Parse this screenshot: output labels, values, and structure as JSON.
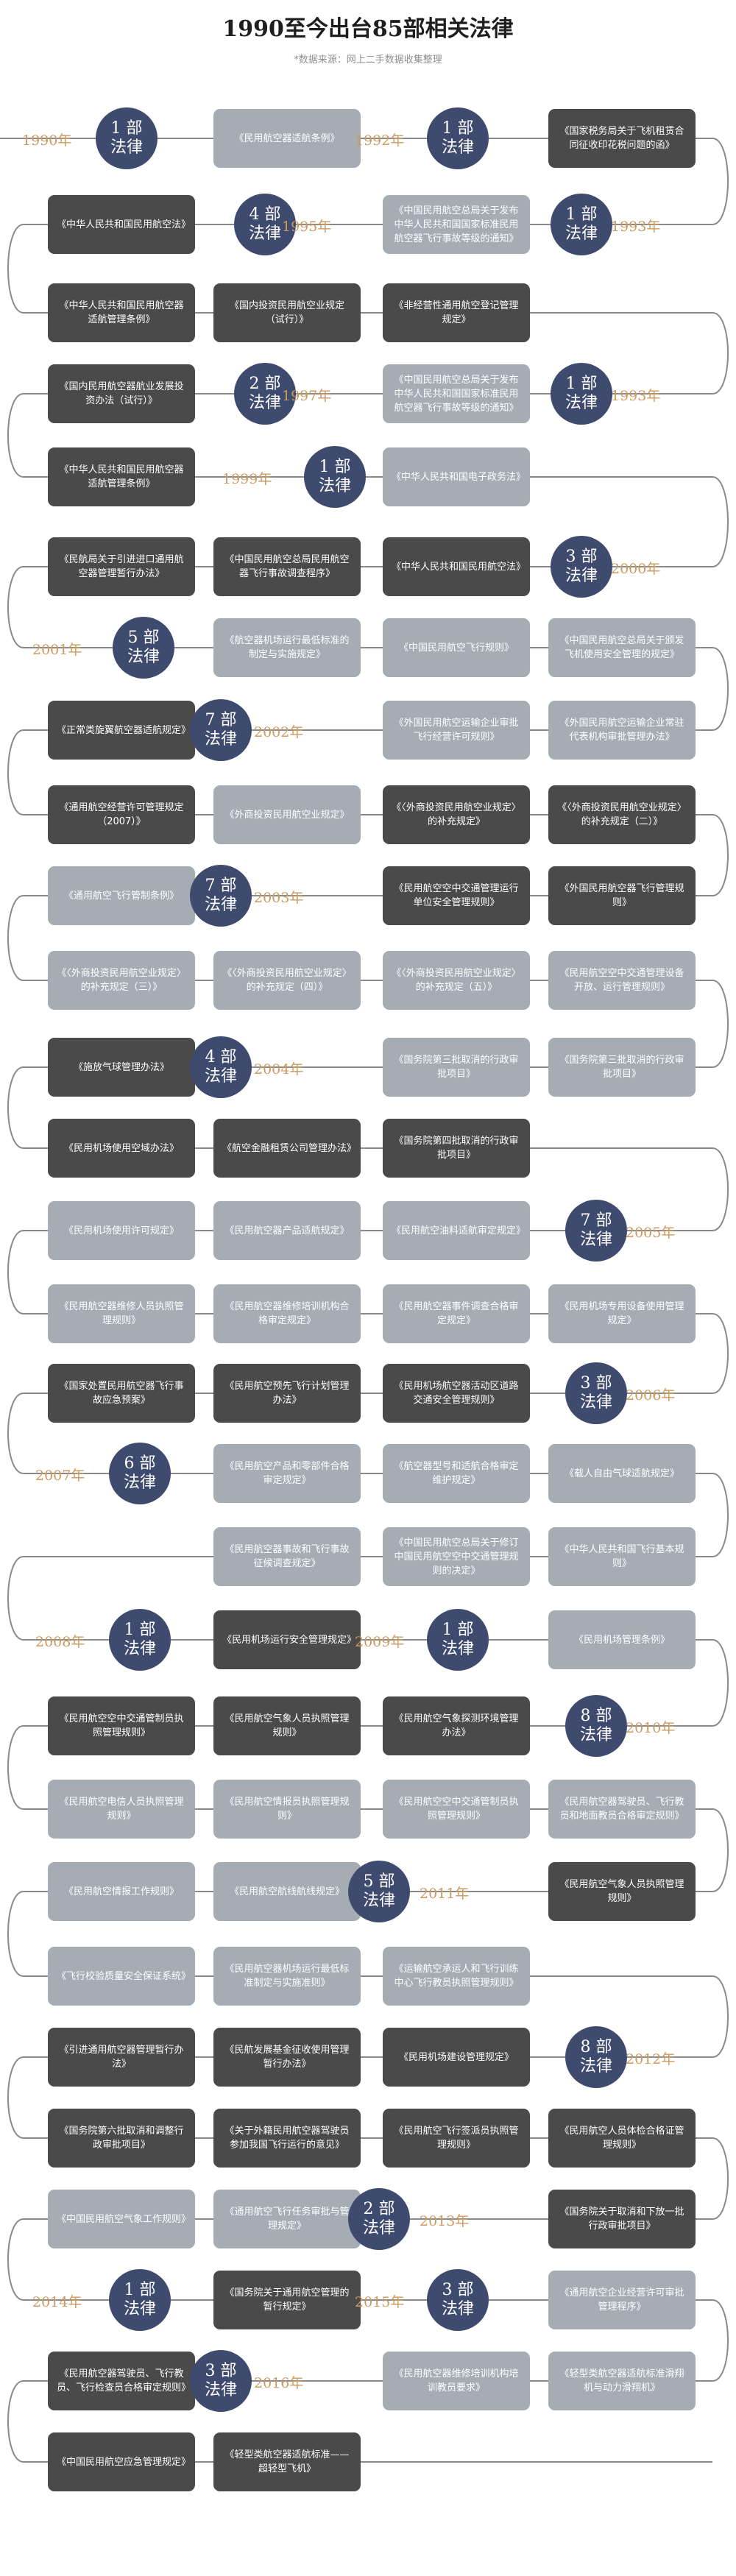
{
  "title": "1990至今出台85部相关法律",
  "subtitle": "*数据来源：网上二手数据收集整理",
  "unit": "部",
  "law": "法律",
  "colors": {
    "dark_box": "#4a4a4a",
    "light_box": "#a5acb4",
    "circle": "#3f4b6e",
    "year": "#cc9a5e",
    "line": "#8a8a8a"
  },
  "years": [
    {
      "year": "1990年",
      "count": "1"
    },
    {
      "year": "1992年",
      "count": "1"
    },
    {
      "year": "1993年",
      "count": "1"
    },
    {
      "year": "1995年",
      "count": "4"
    },
    {
      "year": "1993年",
      "count": "1"
    },
    {
      "year": "1997年",
      "count": "2"
    },
    {
      "year": "1999年",
      "count": "1"
    },
    {
      "year": "2000年",
      "count": "3"
    },
    {
      "year": "2001年",
      "count": "5"
    },
    {
      "year": "2002年",
      "count": "7"
    },
    {
      "year": "2003年",
      "count": "7"
    },
    {
      "year": "2004年",
      "count": "4"
    },
    {
      "year": "2005年",
      "count": "7"
    },
    {
      "year": "2006年",
      "count": "3"
    },
    {
      "year": "2007年",
      "count": "6"
    },
    {
      "year": "2008年",
      "count": "1"
    },
    {
      "year": "2009年",
      "count": "1"
    },
    {
      "year": "2010年",
      "count": "8"
    },
    {
      "year": "2011年",
      "count": "5"
    },
    {
      "year": "2012年",
      "count": "8"
    },
    {
      "year": "2013年",
      "count": "2"
    },
    {
      "year": "2014年",
      "count": "1"
    },
    {
      "year": "2015年",
      "count": "3"
    },
    {
      "year": "2016年",
      "count": "3"
    }
  ],
  "laws": [
    "《民用航空器适航条例》",
    "《国家税务局关于飞机租赁合同征收印花税问题的函》",
    "《中国民用航空总局关于发布中华人民共和国国家标准民用航空器飞行事故等级的通知》",
    "《中华人民共和国民用航空法》",
    "《中华人民共和国民用航空器适航管理条例》",
    "《国内投资民用航空业规定（试行）》",
    "《非经营性通用航空登记管理规定》",
    "《中国民用航空总局关于发布中华人民共和国国家标准民用航空器飞行事故等级的通知》",
    "《国内民用航空器航业发展投资办法（试行）》",
    "《中华人民共和国民用航空器适航管理条例》",
    "《中华人民共和国电子政务法》",
    "《民航局关于引进进口通用航空器管理暂行办法》",
    "《中国民用航空总局民用航空器飞行事故调查程序》",
    "《中华人民共和国民用航空法》",
    "《航空器机场运行最低标准的制定与实施规定》",
    "《中国民用航空飞行规则》",
    "《中国民用航空总局关于颁发飞机使用安全管理的规定》",
    "《正常类旋翼航空器适航规定》",
    "《外国民用航空运输企业审批飞行经营许可规则》",
    "《外国民用航空运输企业常驻代表机构审批管理办法》",
    "《通用航空经营许可管理规定（2007）》",
    "《外商投资民用航空业规定》",
    "《〈外商投资民用航空业规定〉的补充规定》",
    "《〈外商投资民用航空业规定〉的补充规定（二）》",
    "《通用航空飞行管制条例》",
    "《民用航空空中交通管理运行单位安全管理规则》",
    "《外国民用航空器飞行管理规则》",
    "《〈外商投资民用航空业规定〉的补充规定（三）》",
    "《〈外商投资民用航空业规定〉的补充规定（四）》",
    "《〈外商投资民用航空业规定〉的补充规定（五）》",
    "《民用航空空中交通管理设备开放、运行管理规则》",
    "《施放气球管理办法》",
    "《国务院第三批取消的行政审批项目》",
    "《国务院第三批取消的行政审批项目》",
    "《民用机场使用空域办法》",
    "《航空金融租赁公司管理办法》",
    "《国务院第四批取消的行政审批项目》",
    "《民用机场使用许可规定》",
    "《民用航空器产品适航规定》",
    "《民用航空油料适航审定规定》",
    "《民用航空器维修人员执照管理规则》",
    "《民用航空器维修培训机构合格审定规定》",
    "《民用航空器事件调查合格审定规定》",
    "《民用机场专用设备使用管理规定》",
    "《国家处置民用航空器飞行事故应急预案》",
    "《民用航空预先飞行计划管理办法》",
    "《民用机场航空器活动区道路交通安全管理规则》",
    "《民用航空产品和零部件合格审定规定》",
    "《航空器型号和适航合格审定维护规定》",
    "《载人自由气球适航规定》",
    "《民用航空器事故和飞行事故征候调查规定》",
    "《中国民用航空总局关于修订中国民用航空空中交通管理规则的决定》",
    "《中华人民共和国飞行基本规则》",
    "《民用机场运行安全管理规定》",
    "《民用机场管理条例》",
    "《民用航空空中交通管制员执照管理规则》",
    "《民用航空气象人员执照管理规则》",
    "《民用航空气象探测环境管理办法》",
    "《民用航空电信人员执照管理规则》",
    "《民用航空情报员执照管理规则》",
    "《民用航空空中交通管制员执照管理规则》",
    "《民用航空器驾驶员、飞行教员和地面教员合格审定规则》",
    "《民用航空情报工作规则》",
    "《民用航空航线航线规定》",
    "《民用航空气象人员执照管理规则》",
    "《飞行校验质量安全保证系统》",
    "《民用航空器机场运行最低标准制定与实施准则》",
    "《运输航空承运人和飞行训练中心飞行教员执照管理规则》",
    "《引进通用航空器管理暂行办法》",
    "《民航发展基金征收使用管理暂行办法》",
    "《民用机场建设管理规定》",
    "《国务院第六批取消和调整行政审批项目》",
    "《关于外籍民用航空器驾驶员参加我国飞行运行的意见》",
    "《民用航空飞行签派员执照管理规则》",
    "《民用航空人员体检合格证管理规则》",
    "《中国民用航空气象工作规则》",
    "《通用航空飞行任务审批与管理规定》",
    "《国务院关于取消和下放一批行政审批项目》",
    "《国务院关于通用航空管理的暂行规定》",
    "《通用航空企业经营许可审批管理程序》",
    "《民用航空器驾驶员、飞行教员、飞行检查员合格审定规则》",
    "《民用航空器维修培训机构培训教员要求》",
    "《轻型类航空器适航标准滑翔机与动力滑翔机》",
    "《中国民用航空应急管理规定》",
    "《轻型类航空器适航标准——超轻型飞机》"
  ]
}
